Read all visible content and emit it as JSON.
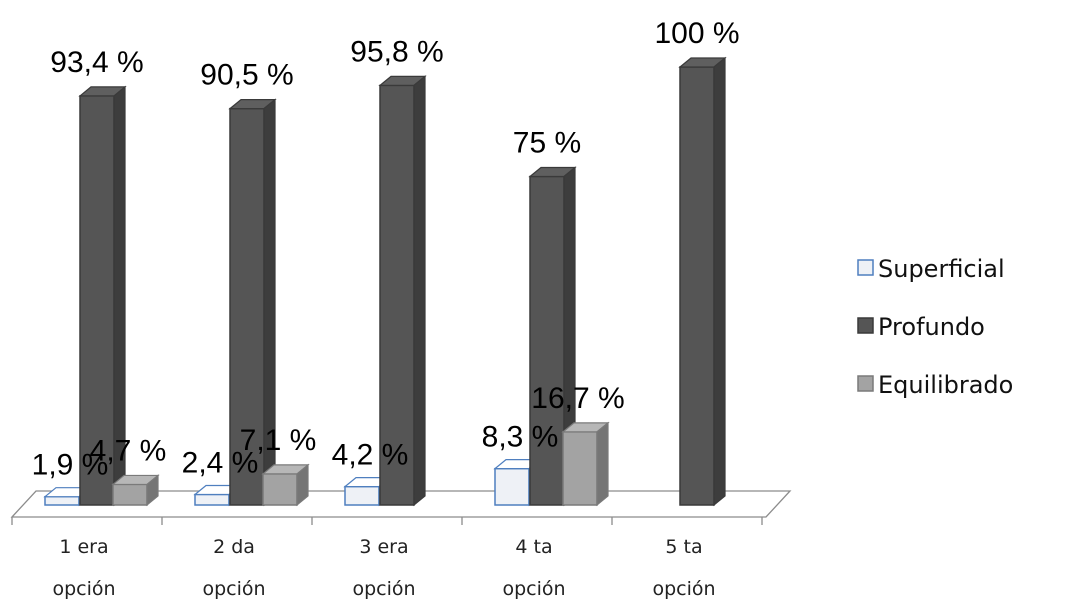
{
  "chart_data": {
    "type": "bar",
    "categories": [
      [
        "1 era",
        "opción"
      ],
      [
        "2 da",
        "opción"
      ],
      [
        "3 era",
        "opción"
      ],
      [
        "4 ta",
        "opción"
      ],
      [
        "5 ta",
        "opción"
      ]
    ],
    "series": [
      {
        "name": "Superficial",
        "values": [
          1.9,
          2.4,
          4.2,
          8.3,
          null
        ],
        "labels": [
          "1,9 %",
          "2,4 %",
          "4,2 %",
          "8,3 %",
          ""
        ],
        "color": "#eef1f6",
        "stroke": "#4f7fbf"
      },
      {
        "name": "Profundo",
        "values": [
          93.4,
          90.5,
          95.8,
          75,
          100
        ],
        "labels": [
          "93,4 %",
          "90,5 %",
          "95,8 %",
          "75 %",
          "100 %"
        ],
        "color": "#555555",
        "stroke": "#3a3a3a"
      },
      {
        "name": "Equilibrado",
        "values": [
          4.7,
          7.1,
          null,
          16.7,
          null
        ],
        "labels": [
          "4,7 %",
          "7,1 %",
          "",
          "16,7 %",
          ""
        ],
        "color": "#a3a3a3",
        "stroke": "#7a7a7a"
      }
    ],
    "ylim": [
      0,
      100
    ],
    "legend_position": "right",
    "grid": false,
    "title": "",
    "xlabel": "",
    "ylabel": ""
  }
}
